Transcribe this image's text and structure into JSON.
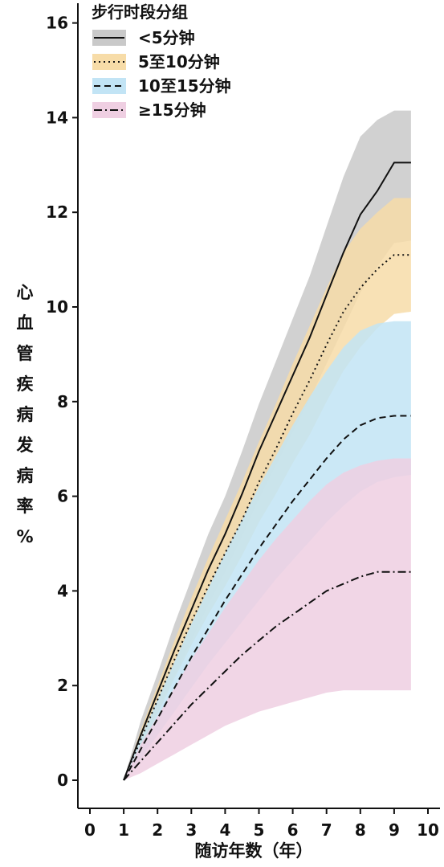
{
  "chart_data": {
    "type": "line",
    "xlabel": "随访年数（年）",
    "ylabel": "心血管疾病发病率 %",
    "xlim": [
      0,
      10
    ],
    "ylim": [
      0,
      16
    ],
    "x_ticks": [
      "0",
      "1",
      "2",
      "3",
      "4",
      "5",
      "6",
      "7",
      "8",
      "9",
      "10"
    ],
    "y_ticks": [
      "0",
      "2",
      "4",
      "6",
      "8",
      "10",
      "12",
      "14",
      "16"
    ],
    "legend_title": "步行时段分组",
    "legend_position": "top-left",
    "grid": false,
    "x": [
      1.0,
      1.5,
      2.0,
      2.5,
      3.0,
      3.5,
      4.0,
      4.5,
      5.0,
      5.5,
      6.0,
      6.5,
      7.0,
      7.5,
      8.0,
      8.5,
      9.0,
      9.5
    ],
    "series": [
      {
        "name": "<5分钟",
        "line_style": "solid",
        "line_color": "#111111",
        "band_color": "#c9c9c9",
        "values": [
          0,
          0.95,
          1.85,
          2.75,
          3.6,
          4.45,
          5.2,
          6.05,
          6.95,
          7.75,
          8.55,
          9.35,
          10.25,
          11.15,
          11.95,
          12.45,
          13.05,
          13.05
        ],
        "lower": [
          0,
          0.7,
          1.45,
          2.2,
          2.95,
          3.7,
          4.4,
          5.15,
          5.95,
          6.65,
          7.35,
          8.05,
          8.8,
          9.55,
          10.3,
          10.85,
          11.35,
          11.4
        ],
        "upper": [
          0,
          1.25,
          2.25,
          3.3,
          4.25,
          5.2,
          6.0,
          6.95,
          7.95,
          8.85,
          9.75,
          10.65,
          11.7,
          12.75,
          13.6,
          13.95,
          14.15,
          14.15
        ]
      },
      {
        "name": "5至10分钟",
        "line_style": "dotted",
        "line_color": "#111111",
        "band_color": "#f7dca8",
        "values": [
          0,
          0.85,
          1.7,
          2.55,
          3.35,
          4.1,
          4.8,
          5.5,
          6.3,
          7.0,
          7.75,
          8.45,
          9.2,
          9.9,
          10.4,
          10.8,
          11.1,
          11.1
        ],
        "lower": [
          0,
          0.65,
          1.4,
          2.15,
          2.85,
          3.5,
          4.1,
          4.75,
          5.45,
          6.05,
          6.7,
          7.3,
          8.0,
          8.65,
          9.15,
          9.55,
          9.85,
          9.9
        ],
        "upper": [
          0,
          1.05,
          2.0,
          2.95,
          3.85,
          4.7,
          5.5,
          6.3,
          7.15,
          7.95,
          8.8,
          9.6,
          10.4,
          11.15,
          11.65,
          12.0,
          12.3,
          12.3
        ]
      },
      {
        "name": "10至15分钟",
        "line_style": "dashed",
        "line_color": "#111111",
        "band_color": "#c2e4f5",
        "values": [
          0,
          0.65,
          1.3,
          1.95,
          2.6,
          3.2,
          3.8,
          4.35,
          4.9,
          5.4,
          5.9,
          6.35,
          6.8,
          7.2,
          7.5,
          7.65,
          7.7,
          7.7
        ],
        "lower": [
          0,
          0.45,
          0.95,
          1.45,
          1.95,
          2.45,
          2.9,
          3.35,
          3.8,
          4.25,
          4.65,
          5.05,
          5.45,
          5.8,
          6.1,
          6.3,
          6.4,
          6.45
        ],
        "upper": [
          0,
          0.9,
          1.7,
          2.5,
          3.3,
          4.05,
          4.8,
          5.5,
          6.2,
          6.85,
          7.5,
          8.1,
          8.65,
          9.15,
          9.5,
          9.65,
          9.7,
          9.7
        ]
      },
      {
        "name": "≥15分钟",
        "line_style": "dashdot",
        "line_color": "#111111",
        "band_color": "#efcfe2",
        "values": [
          0,
          0.4,
          0.8,
          1.2,
          1.6,
          1.95,
          2.3,
          2.65,
          2.95,
          3.25,
          3.5,
          3.75,
          4.0,
          4.15,
          4.3,
          4.4,
          4.4,
          4.4
        ],
        "lower": [
          0,
          0.15,
          0.35,
          0.55,
          0.75,
          0.95,
          1.15,
          1.3,
          1.45,
          1.55,
          1.65,
          1.75,
          1.85,
          1.9,
          1.9,
          1.9,
          1.9,
          1.9
        ],
        "upper": [
          0,
          0.75,
          1.35,
          1.95,
          2.55,
          3.1,
          3.65,
          4.15,
          4.65,
          5.1,
          5.5,
          5.9,
          6.25,
          6.5,
          6.65,
          6.75,
          6.8,
          6.8
        ]
      }
    ]
  }
}
